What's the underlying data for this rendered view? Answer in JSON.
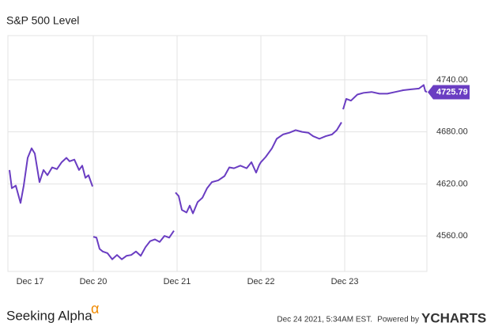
{
  "chart_data": {
    "type": "line",
    "title": "S&P 500 Level",
    "color": "#6a3dc2",
    "x": [
      0,
      0.028,
      0.075,
      0.132,
      0.17,
      0.217,
      0.264,
      0.302,
      0.358,
      0.406,
      0.453,
      0.509,
      0.566,
      0.623,
      0.679,
      0.717,
      0.774,
      0.83,
      0.868,
      0.906,
      0.943,
      0.991,
      null,
      1.0,
      1.038,
      1.075,
      1.113,
      1.17,
      1.226,
      1.283,
      1.34,
      1.396,
      1.453,
      1.509,
      1.566,
      1.623,
      1.679,
      1.736,
      1.792,
      1.849,
      1.906,
      1.962,
      null,
      1.981,
      2.019,
      2.057,
      2.113,
      2.151,
      2.189,
      2.245,
      2.302,
      2.358,
      2.415,
      2.491,
      2.566,
      2.623,
      2.679,
      2.755,
      2.83,
      2.887,
      2.943,
      2.981,
      3.0,
      3.057,
      3.132,
      3.189,
      3.264,
      3.34,
      3.415,
      3.491,
      3.566,
      3.623,
      3.698,
      3.774,
      3.849,
      3.906,
      3.962,
      null,
      3.981,
      4.019,
      4.075,
      4.151,
      4.226,
      4.321,
      4.415,
      4.509,
      4.604,
      4.698,
      4.792,
      4.887,
      4.943,
      4.962,
      4.981
    ],
    "values": [
      4636,
      4615,
      4618,
      4598,
      4618,
      4650,
      4661,
      4655,
      4622,
      4636,
      4630,
      4639,
      4637,
      4645,
      4650,
      4646,
      4648,
      4636,
      4641,
      4627,
      4630,
      4617,
      null,
      4559,
      4558,
      4545,
      4542,
      4540,
      4533,
      4538,
      4533,
      4537,
      4538,
      4542,
      4537,
      4547,
      4554,
      4556,
      4553,
      4560,
      4558,
      4566,
      null,
      4610,
      4606,
      4590,
      4587,
      4595,
      4586,
      4599,
      4604,
      4615,
      4622,
      4624,
      4629,
      4639,
      4638,
      4641,
      4638,
      4645,
      4633,
      4642,
      4645,
      4651,
      4661,
      4672,
      4677,
      4679,
      4682,
      4680,
      4679,
      4675,
      4672,
      4675,
      4677,
      4682,
      4691,
      null,
      4706,
      4718,
      4716,
      4723,
      4725,
      4726,
      4724,
      4724,
      4726,
      4728,
      4729,
      4730,
      4734,
      4727,
      4725.79
    ],
    "last_value": 4725.79,
    "xlim": [
      0,
      4.981
    ],
    "xticks": [
      {
        "value": 0,
        "label": "Dec 17"
      },
      {
        "value": 1,
        "label": "Dec 20"
      },
      {
        "value": 2,
        "label": "Dec 21"
      },
      {
        "value": 3,
        "label": "Dec 22"
      },
      {
        "value": 4,
        "label": "Dec 23"
      }
    ],
    "ylim": [
      4519,
      4791
    ],
    "yticks": [
      {
        "value": 4560,
        "label": "4560.00"
      },
      {
        "value": 4620,
        "label": "4620.00"
      },
      {
        "value": 4680,
        "label": "4680.00"
      },
      {
        "value": 4740,
        "label": "4740.00"
      }
    ],
    "grid": true,
    "source": "Seeking Alpha",
    "source_symbol": "α",
    "timestamp": "Dec 24 2021, 5:34AM EST.",
    "powered_by": "Powered by",
    "brand": "YCHARTS"
  }
}
